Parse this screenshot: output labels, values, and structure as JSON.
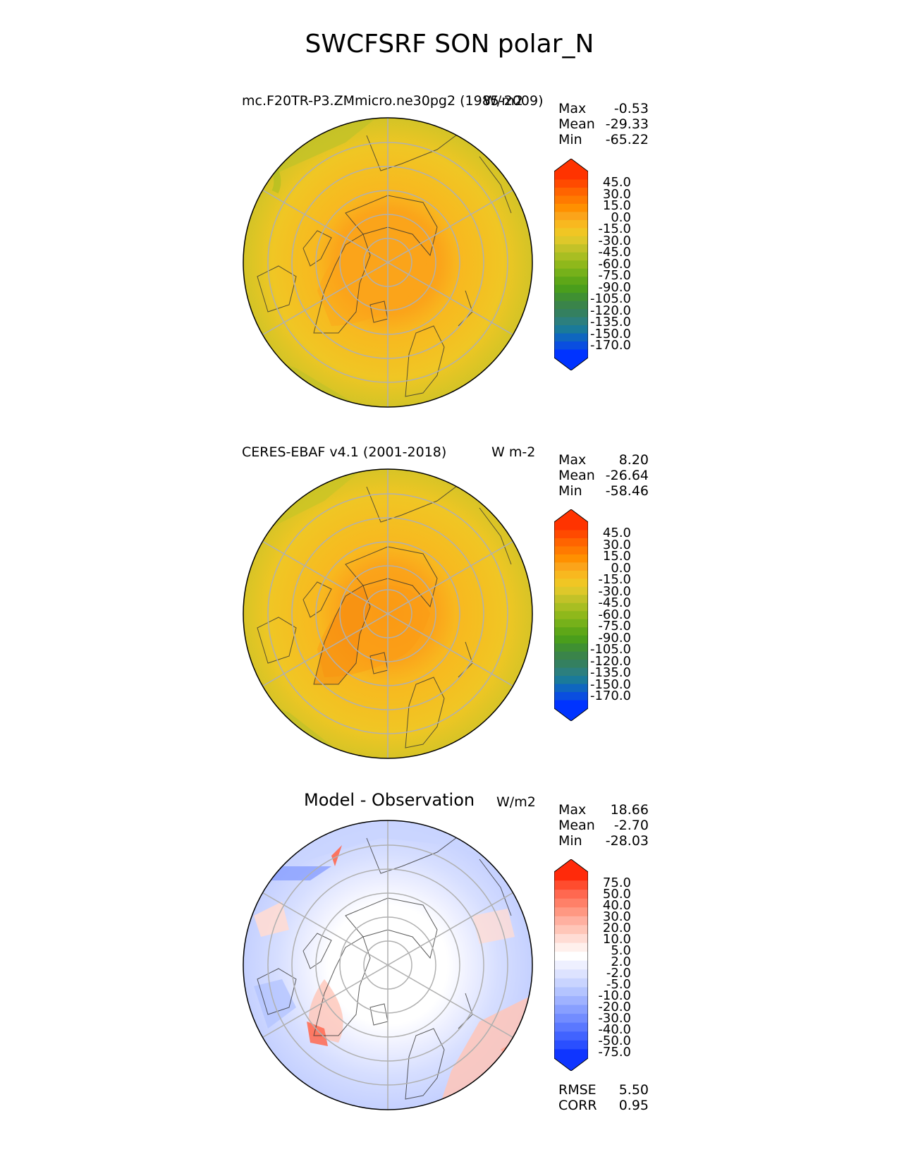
{
  "figure_title": "SWCFSRF SON polar_N",
  "panels": [
    {
      "title": "mc.F20TR-P3.ZMmicro.ne30pg2 (1985-2009)",
      "units": "W/m2",
      "stats": [
        {
          "label": "Max",
          "value": "-0.53"
        },
        {
          "label": "Mean",
          "value": "-29.33"
        },
        {
          "label": "Min",
          "value": "-65.22"
        }
      ]
    },
    {
      "title": "CERES-EBAF v4.1 (2001-2018)",
      "units": "W m-2",
      "stats": [
        {
          "label": "Max",
          "value": "8.20"
        },
        {
          "label": "Mean",
          "value": "-26.64"
        },
        {
          "label": "Min",
          "value": "-58.46"
        }
      ]
    },
    {
      "title": "Model - Observation",
      "units": "W/m2",
      "stats": [
        {
          "label": "Max",
          "value": "18.66"
        },
        {
          "label": "Mean",
          "value": "-2.70"
        },
        {
          "label": "Min",
          "value": "-28.03"
        }
      ],
      "metrics": [
        {
          "label": "RMSE",
          "value": "5.50"
        },
        {
          "label": "CORR",
          "value": "0.95"
        }
      ]
    }
  ],
  "colorbars": {
    "field": {
      "ticks": [
        "45.0",
        "30.0",
        "15.0",
        "0.0",
        "-15.0",
        "-30.0",
        "-45.0",
        "-60.0",
        "-75.0",
        "-90.0",
        "-105.0",
        "-120.0",
        "-135.0",
        "-150.0",
        "-170.0"
      ],
      "colors": [
        "#ff3300",
        "#ff4a00",
        "#ff6400",
        "#ff7a00",
        "#ff9000",
        "#fba41a",
        "#f8b81f",
        "#f0c624",
        "#dec82a",
        "#c2c228",
        "#a8be22",
        "#8fb81b",
        "#76b11a",
        "#5ea718",
        "#4a9e1c",
        "#3f9032",
        "#3a844a",
        "#348060",
        "#2c7f7e",
        "#1a7a9a",
        "#0f66c0",
        "#0a4ee0",
        "#0033ff"
      ]
    },
    "diff": {
      "ticks": [
        "75.0",
        "50.0",
        "40.0",
        "30.0",
        "20.0",
        "10.0",
        "5.0",
        "2.0",
        "-2.0",
        "-5.0",
        "-10.0",
        "-20.0",
        "-30.0",
        "-40.0",
        "-50.0",
        "-75.0"
      ],
      "colors": [
        "#ff2a0a",
        "#ff4c2e",
        "#ff6850",
        "#ff8068",
        "#ff9882",
        "#ffb0a0",
        "#ffc6b8",
        "#ffdcd4",
        "#fff0ec",
        "#ffffff",
        "#eef0ff",
        "#dde3ff",
        "#c9d4ff",
        "#b4c4ff",
        "#9fb2ff",
        "#889fff",
        "#728cff",
        "#5a78ff",
        "#4163ff",
        "#2a4fff",
        "#0f35ff"
      ]
    }
  }
}
